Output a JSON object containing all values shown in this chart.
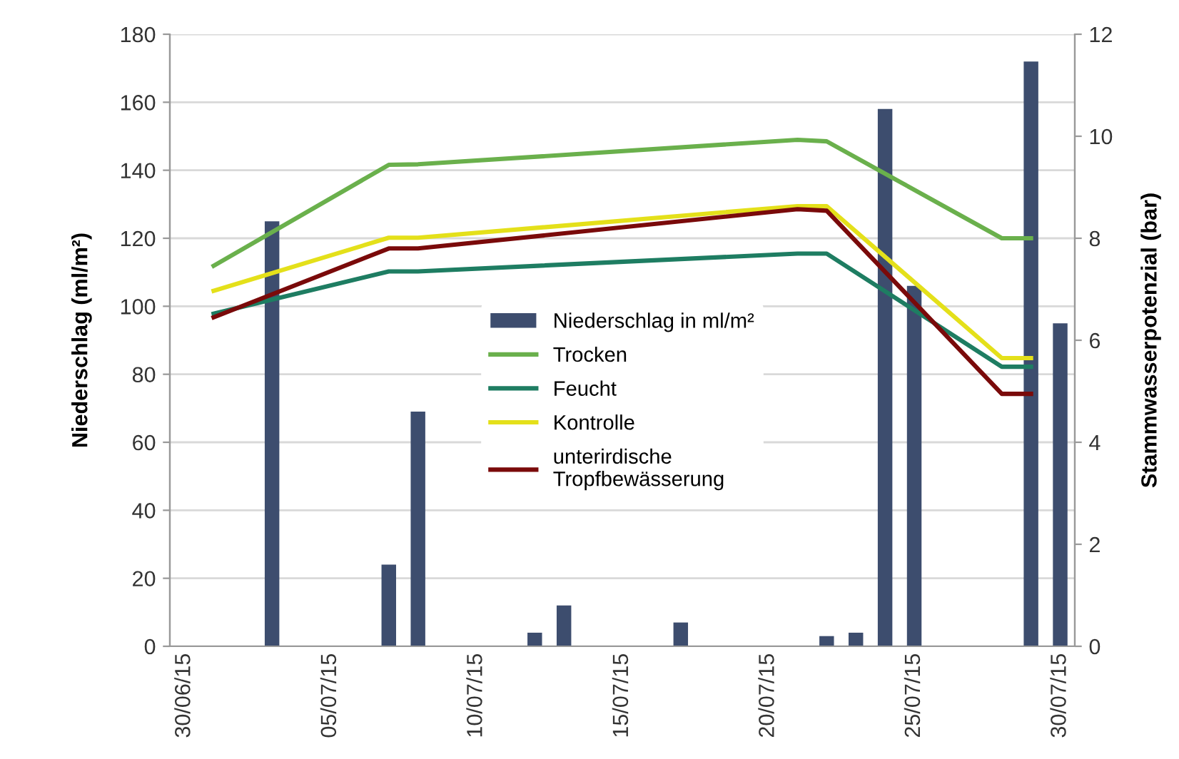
{
  "chart_data": {
    "type": "bar",
    "categories": [
      "30/06/15",
      null,
      null,
      null,
      null,
      "05/07/15",
      null,
      null,
      null,
      null,
      "10/07/15",
      null,
      null,
      null,
      null,
      "15/07/15",
      null,
      null,
      null,
      null,
      "20/07/15",
      null,
      null,
      null,
      null,
      "25/07/15",
      null,
      null,
      null,
      null,
      "30/07/15"
    ],
    "series": [
      {
        "name": "Niederschlag in ml/m²",
        "color": "#3d4d6e",
        "values": [
          null,
          null,
          null,
          125,
          null,
          null,
          null,
          24,
          69,
          null,
          null,
          null,
          4,
          12,
          null,
          null,
          null,
          7,
          null,
          null,
          null,
          null,
          3,
          4,
          158,
          106,
          null,
          null,
          null,
          172,
          95
        ]
      },
      {
        "name": "Trocken",
        "type": "line",
        "axis": "y2",
        "color": "#6ab04c",
        "values": [
          null,
          7.46,
          null,
          null,
          null,
          null,
          null,
          9.44,
          9.45,
          null,
          null,
          null,
          null,
          null,
          null,
          null,
          null,
          null,
          null,
          null,
          null,
          9.93,
          9.9,
          null,
          null,
          null,
          null,
          null,
          8.0,
          8.0,
          null
        ]
      },
      {
        "name": "Feucht",
        "type": "line",
        "axis": "y2",
        "color": "#1e7d62",
        "values": [
          null,
          6.52,
          null,
          null,
          null,
          null,
          null,
          7.35,
          7.35,
          null,
          null,
          null,
          null,
          null,
          null,
          null,
          null,
          null,
          null,
          null,
          null,
          7.7,
          7.7,
          null,
          null,
          null,
          null,
          null,
          5.48,
          5.48,
          null
        ]
      },
      {
        "name": "Kontrolle",
        "type": "line",
        "axis": "y2",
        "color": "#e4e01a",
        "values": [
          null,
          6.97,
          null,
          null,
          null,
          null,
          null,
          8.01,
          8.01,
          null,
          null,
          null,
          null,
          null,
          null,
          null,
          null,
          null,
          null,
          null,
          null,
          8.63,
          8.63,
          null,
          null,
          null,
          null,
          null,
          5.65,
          5.65,
          null
        ]
      },
      {
        "name": "unterirdische\nTropfbewässerung",
        "type": "line",
        "axis": "y2",
        "color": "#7a0a0a",
        "values": [
          null,
          6.45,
          null,
          null,
          null,
          null,
          null,
          7.8,
          7.8,
          null,
          null,
          null,
          null,
          null,
          null,
          null,
          null,
          null,
          null,
          null,
          null,
          8.57,
          8.54,
          null,
          null,
          null,
          null,
          null,
          4.95,
          4.95,
          null
        ]
      }
    ],
    "ylabel": "Niederschlag (ml/m²)",
    "y2label": "Stammwasserpotenzial (bar)",
    "ylim": [
      0,
      180
    ],
    "yticks": [
      0,
      20,
      40,
      60,
      80,
      100,
      120,
      140,
      160,
      180
    ],
    "y2lim": [
      0,
      12
    ],
    "y2ticks": [
      0,
      2,
      4,
      6,
      8,
      10,
      12
    ],
    "grid": "y",
    "legend": "center",
    "marker": "none",
    "line_style": "solid"
  }
}
